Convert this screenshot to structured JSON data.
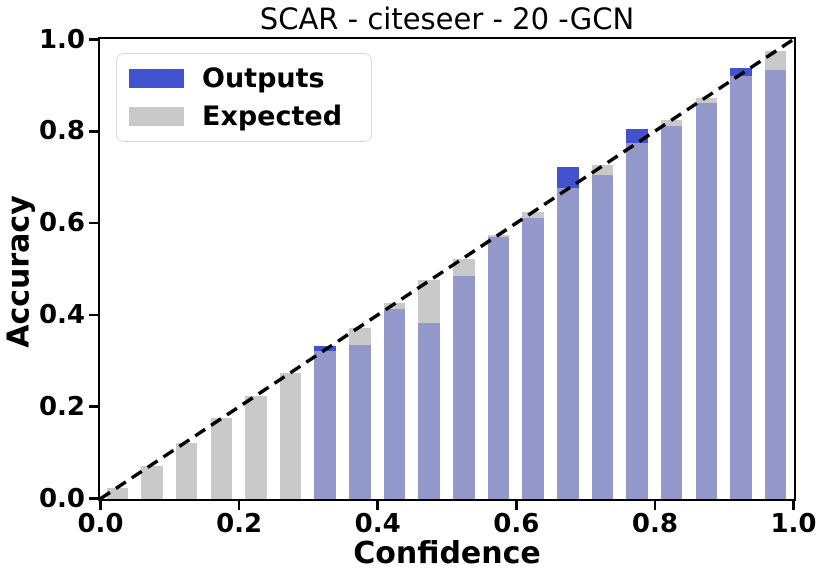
{
  "chart_data": {
    "type": "bar",
    "title": "SCAR - citeseer - 20 -GCN",
    "xlabel": "Confidence",
    "ylabel": "Accuracy",
    "xlim": [
      0.0,
      1.0
    ],
    "ylim": [
      0.0,
      1.0
    ],
    "xticks": [
      "0.0",
      "0.2",
      "0.4",
      "0.6",
      "0.8",
      "1.0"
    ],
    "yticks": [
      "0.0",
      "0.2",
      "0.4",
      "0.6",
      "0.8",
      "1.0"
    ],
    "grid": false,
    "bar_width": 0.031,
    "bin_centers": [
      0.025,
      0.075,
      0.125,
      0.175,
      0.225,
      0.275,
      0.325,
      0.375,
      0.425,
      0.475,
      0.525,
      0.575,
      0.625,
      0.675,
      0.725,
      0.775,
      0.825,
      0.875,
      0.925,
      0.975
    ],
    "series": [
      {
        "name": "Outputs",
        "color": "#4353d0",
        "values": [
          0,
          0,
          0,
          0,
          0,
          0,
          0.333,
          0.335,
          0.413,
          0.383,
          0.485,
          0.57,
          0.612,
          0.724,
          0.707,
          0.806,
          0.812,
          0.862,
          0.94,
          0.934
        ]
      },
      {
        "name": "Expected",
        "color": "#c9c9c9",
        "values": [
          0.024,
          0.073,
          0.123,
          0.177,
          0.224,
          0.274,
          0.322,
          0.373,
          0.426,
          0.477,
          0.522,
          0.576,
          0.625,
          0.678,
          0.727,
          0.775,
          0.826,
          0.874,
          0.922,
          0.975
        ]
      }
    ],
    "overlap_color": "#9399cb",
    "diagonal": {
      "from": [
        0,
        0
      ],
      "to": [
        1,
        1
      ],
      "style": "dashed",
      "color": "#000000"
    },
    "legend": {
      "position": "upper left",
      "entries": [
        "Outputs",
        "Expected"
      ]
    }
  }
}
